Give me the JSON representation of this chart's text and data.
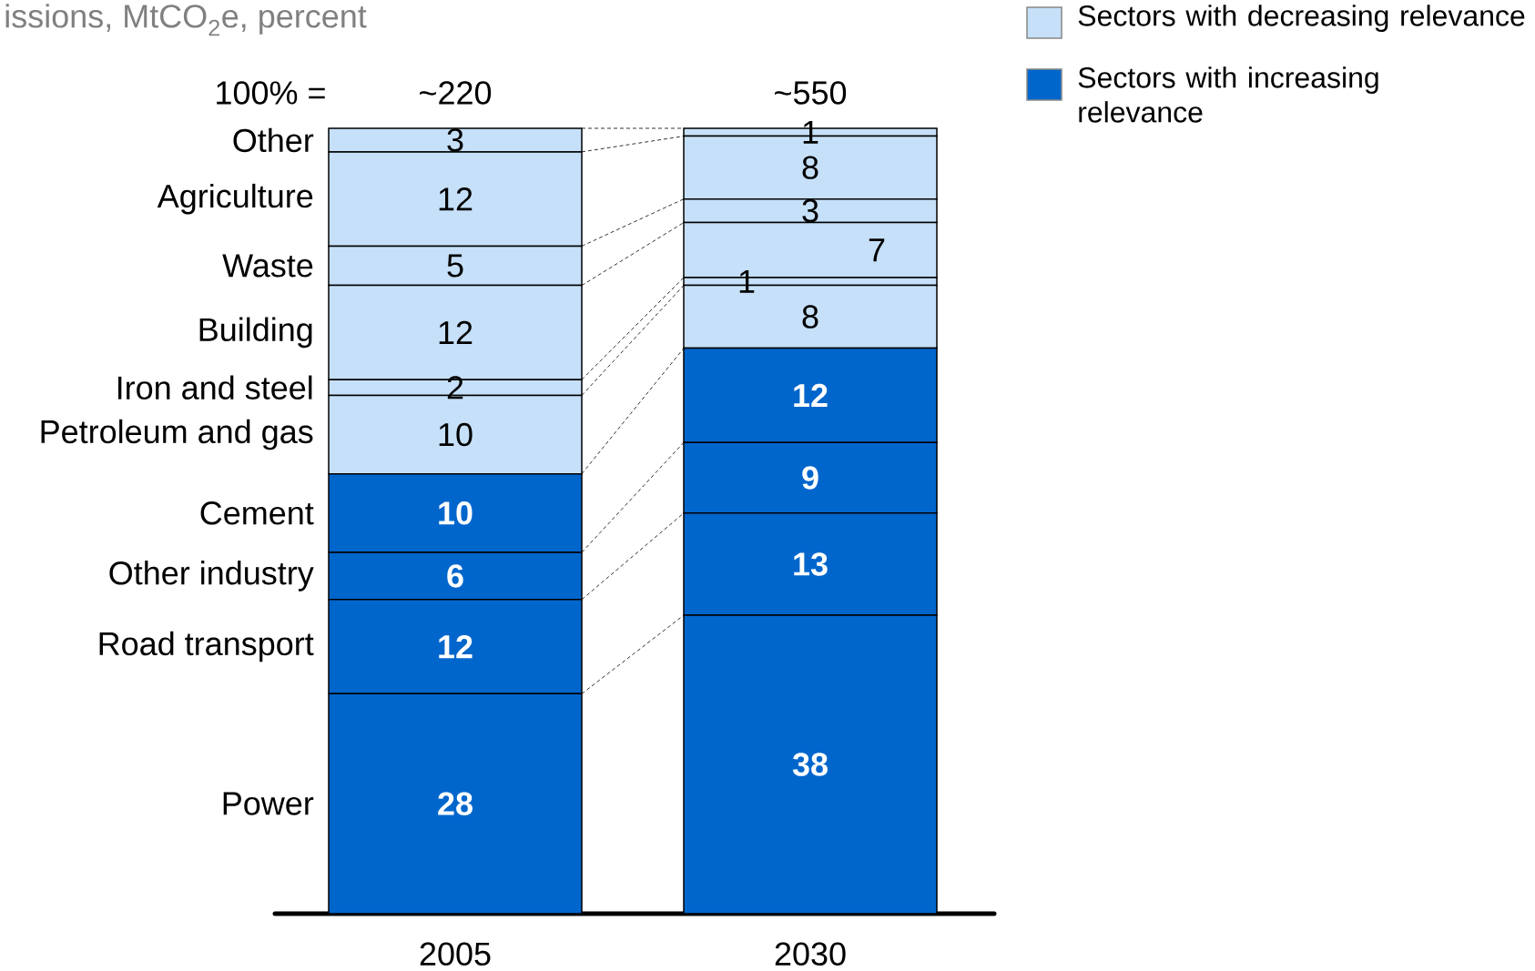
{
  "chart_data": {
    "type": "bar",
    "title": "issions, MtCO$_{2}$e, percent",
    "categories": [
      "2005",
      "2030"
    ],
    "stacked": true,
    "data_labels": true,
    "annotations": [
      "100% =",
      "~220",
      "~550",
      "Sectors with decreasing relevance",
      "Sectors with increasing relevance"
    ],
    "series": [
      {
        "name": "Power",
        "color": "#0066cc",
        "values": [
          28,
          38
        ]
      },
      {
        "name": "Road transport",
        "color": "#0066cc",
        "values": [
          12,
          13
        ]
      },
      {
        "name": "Other industry",
        "color": "#0066cc",
        "values": [
          6,
          9
        ]
      },
      {
        "name": "Cement",
        "color": "#0066cc",
        "values": [
          10,
          12
        ]
      },
      {
        "name": "Petroleum and gas",
        "color": "#c6e0f9",
        "values": [
          10,
          8
        ]
      },
      {
        "name": "Iron and steel",
        "color": "#c6e0f9",
        "values": [
          2,
          1
        ]
      },
      {
        "name": "Building",
        "color": "#c6e0f9",
        "values": [
          12,
          7
        ]
      },
      {
        "name": "Waste",
        "color": "#c6e0f9",
        "values": [
          5,
          3
        ]
      },
      {
        "name": "Agriculture",
        "color": "#c6e0f9",
        "values": [
          12,
          8
        ]
      },
      {
        "name": "Other",
        "color": "#c6e0f9",
        "values": [
          3,
          1
        ]
      }
    ]
  }
}
